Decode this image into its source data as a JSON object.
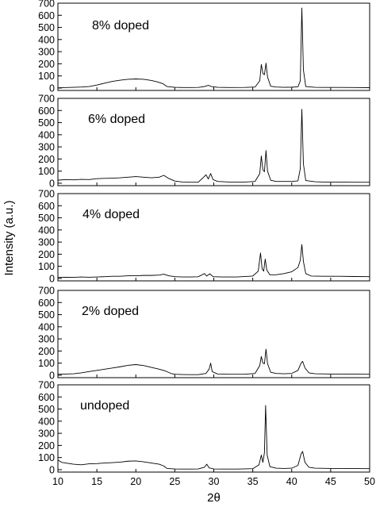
{
  "chart_data": {
    "type": "line",
    "xlabel": "2θ",
    "ylabel": "Intensity (a.u.)",
    "xlim": [
      10,
      50
    ],
    "ylim": [
      -20,
      700
    ],
    "x_ticks": [
      "10",
      "15",
      "20",
      "25",
      "30",
      "35",
      "40",
      "45",
      "50"
    ],
    "y_ticks": [
      "0",
      "100",
      "200",
      "300",
      "400",
      "500",
      "600",
      "700"
    ],
    "series": [
      {
        "name": "8% doped",
        "points": [
          [
            10,
            2
          ],
          [
            11,
            4
          ],
          [
            12,
            6
          ],
          [
            13,
            8
          ],
          [
            14,
            12
          ],
          [
            15,
            25
          ],
          [
            16,
            40
          ],
          [
            17,
            55
          ],
          [
            18,
            65
          ],
          [
            19,
            72
          ],
          [
            20,
            75
          ],
          [
            21,
            72
          ],
          [
            22,
            62
          ],
          [
            22.8,
            50
          ],
          [
            23.5,
            35
          ],
          [
            24,
            12
          ],
          [
            25,
            6
          ],
          [
            26,
            4
          ],
          [
            27,
            4
          ],
          [
            28,
            5
          ],
          [
            28.8,
            12
          ],
          [
            29.3,
            22
          ],
          [
            29.7,
            12
          ],
          [
            30.5,
            6
          ],
          [
            32,
            4
          ],
          [
            34,
            5
          ],
          [
            35.3,
            8
          ],
          [
            35.9,
            60
          ],
          [
            36.1,
            195
          ],
          [
            36.3,
            120
          ],
          [
            36.5,
            110
          ],
          [
            36.7,
            205
          ],
          [
            36.9,
            90
          ],
          [
            37.3,
            15
          ],
          [
            38,
            8
          ],
          [
            39,
            6
          ],
          [
            40,
            7
          ],
          [
            40.8,
            10
          ],
          [
            41.1,
            60
          ],
          [
            41.3,
            660
          ],
          [
            41.5,
            150
          ],
          [
            41.8,
            12
          ],
          [
            43,
            6
          ],
          [
            44,
            5
          ],
          [
            46,
            5
          ],
          [
            48,
            4
          ],
          [
            50,
            3
          ]
        ]
      },
      {
        "name": "6% doped",
        "points": [
          [
            10,
            25
          ],
          [
            11,
            30
          ],
          [
            12,
            28
          ],
          [
            13,
            32
          ],
          [
            14,
            30
          ],
          [
            15,
            38
          ],
          [
            16,
            40
          ],
          [
            17,
            42
          ],
          [
            18,
            45
          ],
          [
            19,
            50
          ],
          [
            20,
            55
          ],
          [
            21,
            50
          ],
          [
            22,
            45
          ],
          [
            23,
            50
          ],
          [
            23.6,
            65
          ],
          [
            24.2,
            40
          ],
          [
            25,
            18
          ],
          [
            26,
            10
          ],
          [
            27,
            8
          ],
          [
            28,
            8
          ],
          [
            28.7,
            50
          ],
          [
            29,
            70
          ],
          [
            29.3,
            35
          ],
          [
            29.6,
            80
          ],
          [
            29.9,
            30
          ],
          [
            30.5,
            15
          ],
          [
            32,
            10
          ],
          [
            34,
            10
          ],
          [
            35.3,
            15
          ],
          [
            35.9,
            80
          ],
          [
            36.1,
            225
          ],
          [
            36.3,
            110
          ],
          [
            36.5,
            95
          ],
          [
            36.7,
            270
          ],
          [
            36.9,
            100
          ],
          [
            37.3,
            25
          ],
          [
            38,
            15
          ],
          [
            39,
            15
          ],
          [
            40,
            15
          ],
          [
            40.8,
            20
          ],
          [
            41.1,
            120
          ],
          [
            41.3,
            610
          ],
          [
            41.5,
            160
          ],
          [
            41.8,
            22
          ],
          [
            43,
            12
          ],
          [
            44,
            10
          ],
          [
            46,
            10
          ],
          [
            48,
            8
          ],
          [
            50,
            8
          ]
        ]
      },
      {
        "name": "4% doped",
        "points": [
          [
            10,
            8
          ],
          [
            11,
            10
          ],
          [
            12,
            9
          ],
          [
            13,
            12
          ],
          [
            14,
            10
          ],
          [
            15,
            12
          ],
          [
            16,
            15
          ],
          [
            17,
            18
          ],
          [
            18,
            18
          ],
          [
            19,
            22
          ],
          [
            20,
            22
          ],
          [
            21,
            25
          ],
          [
            22,
            25
          ],
          [
            23,
            28
          ],
          [
            23.6,
            35
          ],
          [
            24.2,
            22
          ],
          [
            25,
            15
          ],
          [
            26,
            12
          ],
          [
            27,
            12
          ],
          [
            28,
            14
          ],
          [
            28.8,
            40
          ],
          [
            29.1,
            20
          ],
          [
            29.5,
            38
          ],
          [
            29.9,
            15
          ],
          [
            31,
            12
          ],
          [
            33,
            12
          ],
          [
            35,
            20
          ],
          [
            35.7,
            60
          ],
          [
            36,
            210
          ],
          [
            36.2,
            80
          ],
          [
            36.4,
            60
          ],
          [
            36.6,
            160
          ],
          [
            36.8,
            70
          ],
          [
            37.2,
            30
          ],
          [
            38,
            30
          ],
          [
            39,
            40
          ],
          [
            40,
            55
          ],
          [
            40.8,
            90
          ],
          [
            41.1,
            150
          ],
          [
            41.3,
            280
          ],
          [
            41.5,
            140
          ],
          [
            41.8,
            40
          ],
          [
            42.5,
            20
          ],
          [
            44,
            18
          ],
          [
            46,
            18
          ],
          [
            48,
            16
          ],
          [
            50,
            15
          ]
        ]
      },
      {
        "name": "2% doped",
        "points": [
          [
            10,
            8
          ],
          [
            11,
            10
          ],
          [
            12,
            12
          ],
          [
            13,
            20
          ],
          [
            14,
            30
          ],
          [
            15,
            40
          ],
          [
            16,
            50
          ],
          [
            17,
            60
          ],
          [
            18,
            70
          ],
          [
            19,
            82
          ],
          [
            20,
            88
          ],
          [
            21,
            80
          ],
          [
            22,
            65
          ],
          [
            23,
            50
          ],
          [
            23.8,
            35
          ],
          [
            24.5,
            15
          ],
          [
            25,
            8
          ],
          [
            26,
            6
          ],
          [
            27,
            5
          ],
          [
            28,
            5
          ],
          [
            29,
            15
          ],
          [
            29.4,
            50
          ],
          [
            29.6,
            100
          ],
          [
            29.8,
            30
          ],
          [
            30.5,
            10
          ],
          [
            32,
            8
          ],
          [
            34,
            8
          ],
          [
            35.3,
            15
          ],
          [
            35.9,
            80
          ],
          [
            36.1,
            155
          ],
          [
            36.3,
            100
          ],
          [
            36.5,
            95
          ],
          [
            36.7,
            215
          ],
          [
            36.9,
            95
          ],
          [
            37.3,
            25
          ],
          [
            38,
            15
          ],
          [
            39,
            12
          ],
          [
            40,
            15
          ],
          [
            40.8,
            40
          ],
          [
            41.2,
            100
          ],
          [
            41.4,
            115
          ],
          [
            41.7,
            60
          ],
          [
            42.2,
            20
          ],
          [
            43,
            12
          ],
          [
            45,
            10
          ],
          [
            47,
            10
          ],
          [
            50,
            8
          ]
        ]
      },
      {
        "name": "undoped",
        "points": [
          [
            10,
            80
          ],
          [
            10.5,
            60
          ],
          [
            11,
            55
          ],
          [
            12,
            45
          ],
          [
            13,
            40
          ],
          [
            14,
            48
          ],
          [
            15,
            50
          ],
          [
            16,
            55
          ],
          [
            17,
            58
          ],
          [
            18,
            62
          ],
          [
            19,
            70
          ],
          [
            20,
            72
          ],
          [
            21,
            65
          ],
          [
            22,
            55
          ],
          [
            23,
            45
          ],
          [
            23.6,
            30
          ],
          [
            24,
            10
          ],
          [
            25,
            6
          ],
          [
            26,
            5
          ],
          [
            27,
            5
          ],
          [
            28,
            6
          ],
          [
            28.8,
            20
          ],
          [
            29.1,
            45
          ],
          [
            29.4,
            15
          ],
          [
            30,
            6
          ],
          [
            31,
            5
          ],
          [
            33,
            5
          ],
          [
            35,
            8
          ],
          [
            35.8,
            40
          ],
          [
            36.1,
            120
          ],
          [
            36.3,
            60
          ],
          [
            36.5,
            140
          ],
          [
            36.65,
            530
          ],
          [
            36.85,
            120
          ],
          [
            37.2,
            25
          ],
          [
            38,
            12
          ],
          [
            39,
            10
          ],
          [
            40,
            12
          ],
          [
            40.8,
            35
          ],
          [
            41.2,
            130
          ],
          [
            41.4,
            150
          ],
          [
            41.7,
            60
          ],
          [
            42.2,
            20
          ],
          [
            43,
            12
          ],
          [
            45,
            10
          ],
          [
            47,
            10
          ],
          [
            50,
            8
          ]
        ]
      }
    ]
  }
}
